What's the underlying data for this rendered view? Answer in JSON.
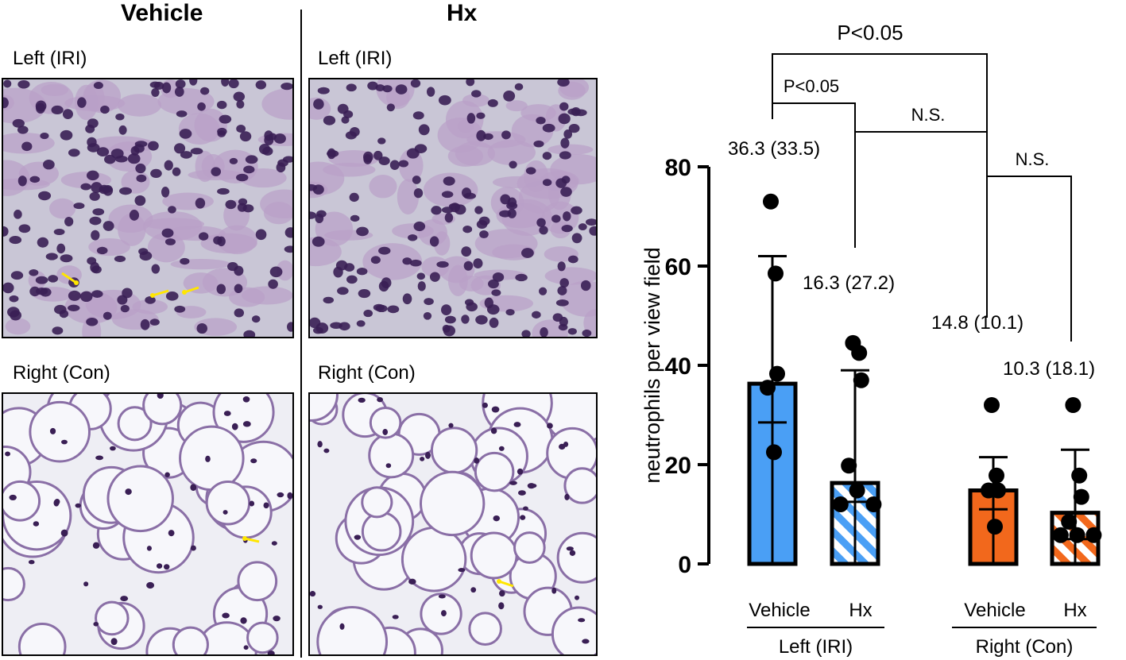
{
  "histology": {
    "col_vehicle": "Vehicle",
    "col_hx": "Hx",
    "panel_labels": {
      "vehicle_left": "Left (IRI)",
      "hx_left": "Left (IRI)",
      "vehicle_right": "Right (Con)",
      "hx_right": "Right (Con)"
    }
  },
  "chart_data": {
    "type": "bar",
    "ylabel": "neutrophils per view field",
    "ylim": [
      0,
      80
    ],
    "yticks": [
      0,
      20,
      40,
      60,
      80
    ],
    "groups": [
      {
        "label": "Left (IRI)",
        "bars": [
          {
            "category": "Vehicle",
            "mean": 36.3,
            "error_high": 62,
            "error_low": 28.5,
            "annotation": "36.3 (33.5)",
            "color": "#4a9ff5",
            "pattern": "solid",
            "points": [
              73,
              58.5,
              38.3,
              35.5,
              22.5
            ]
          },
          {
            "category": "Hx",
            "mean": 16.3,
            "error_high": 39,
            "error_low": 12.5,
            "annotation": "16.3 (27.2)",
            "color": "#4a9ff5",
            "pattern": "stripes",
            "points": [
              44.5,
              42.5,
              37,
              19.8,
              14.8,
              12,
              12
            ]
          }
        ]
      },
      {
        "label": "Right (Con)",
        "bars": [
          {
            "category": "Vehicle",
            "mean": 14.8,
            "error_high": 21.5,
            "error_low": 11,
            "annotation": "14.8 (10.1)",
            "color": "#f2681c",
            "pattern": "solid",
            "points": [
              32,
              17.8,
              14.8,
              14.8,
              7.5
            ]
          },
          {
            "category": "Hx",
            "mean": 10.3,
            "error_high": 23,
            "error_low": 5,
            "annotation": "10.3 (18.1)",
            "color": "#f2681c",
            "pattern": "stripes",
            "points": [
              32,
              17.8,
              13.5,
              8.5,
              5.8,
              5.8,
              5.8
            ]
          }
        ]
      }
    ],
    "significance": [
      {
        "label": "P<0.05",
        "between": [
          "Left (IRI) Vehicle",
          "Right (Con) Vehicle"
        ]
      },
      {
        "label": "P<0.05",
        "between": [
          "Left (IRI) Vehicle",
          "Left (IRI) Hx"
        ]
      },
      {
        "label": "N.S.",
        "between": [
          "Left (IRI) Hx",
          "Right (Con) Hx"
        ]
      },
      {
        "label": "N.S.",
        "between": [
          "Right (Con) Vehicle",
          "Right (Con) Hx"
        ]
      }
    ]
  }
}
